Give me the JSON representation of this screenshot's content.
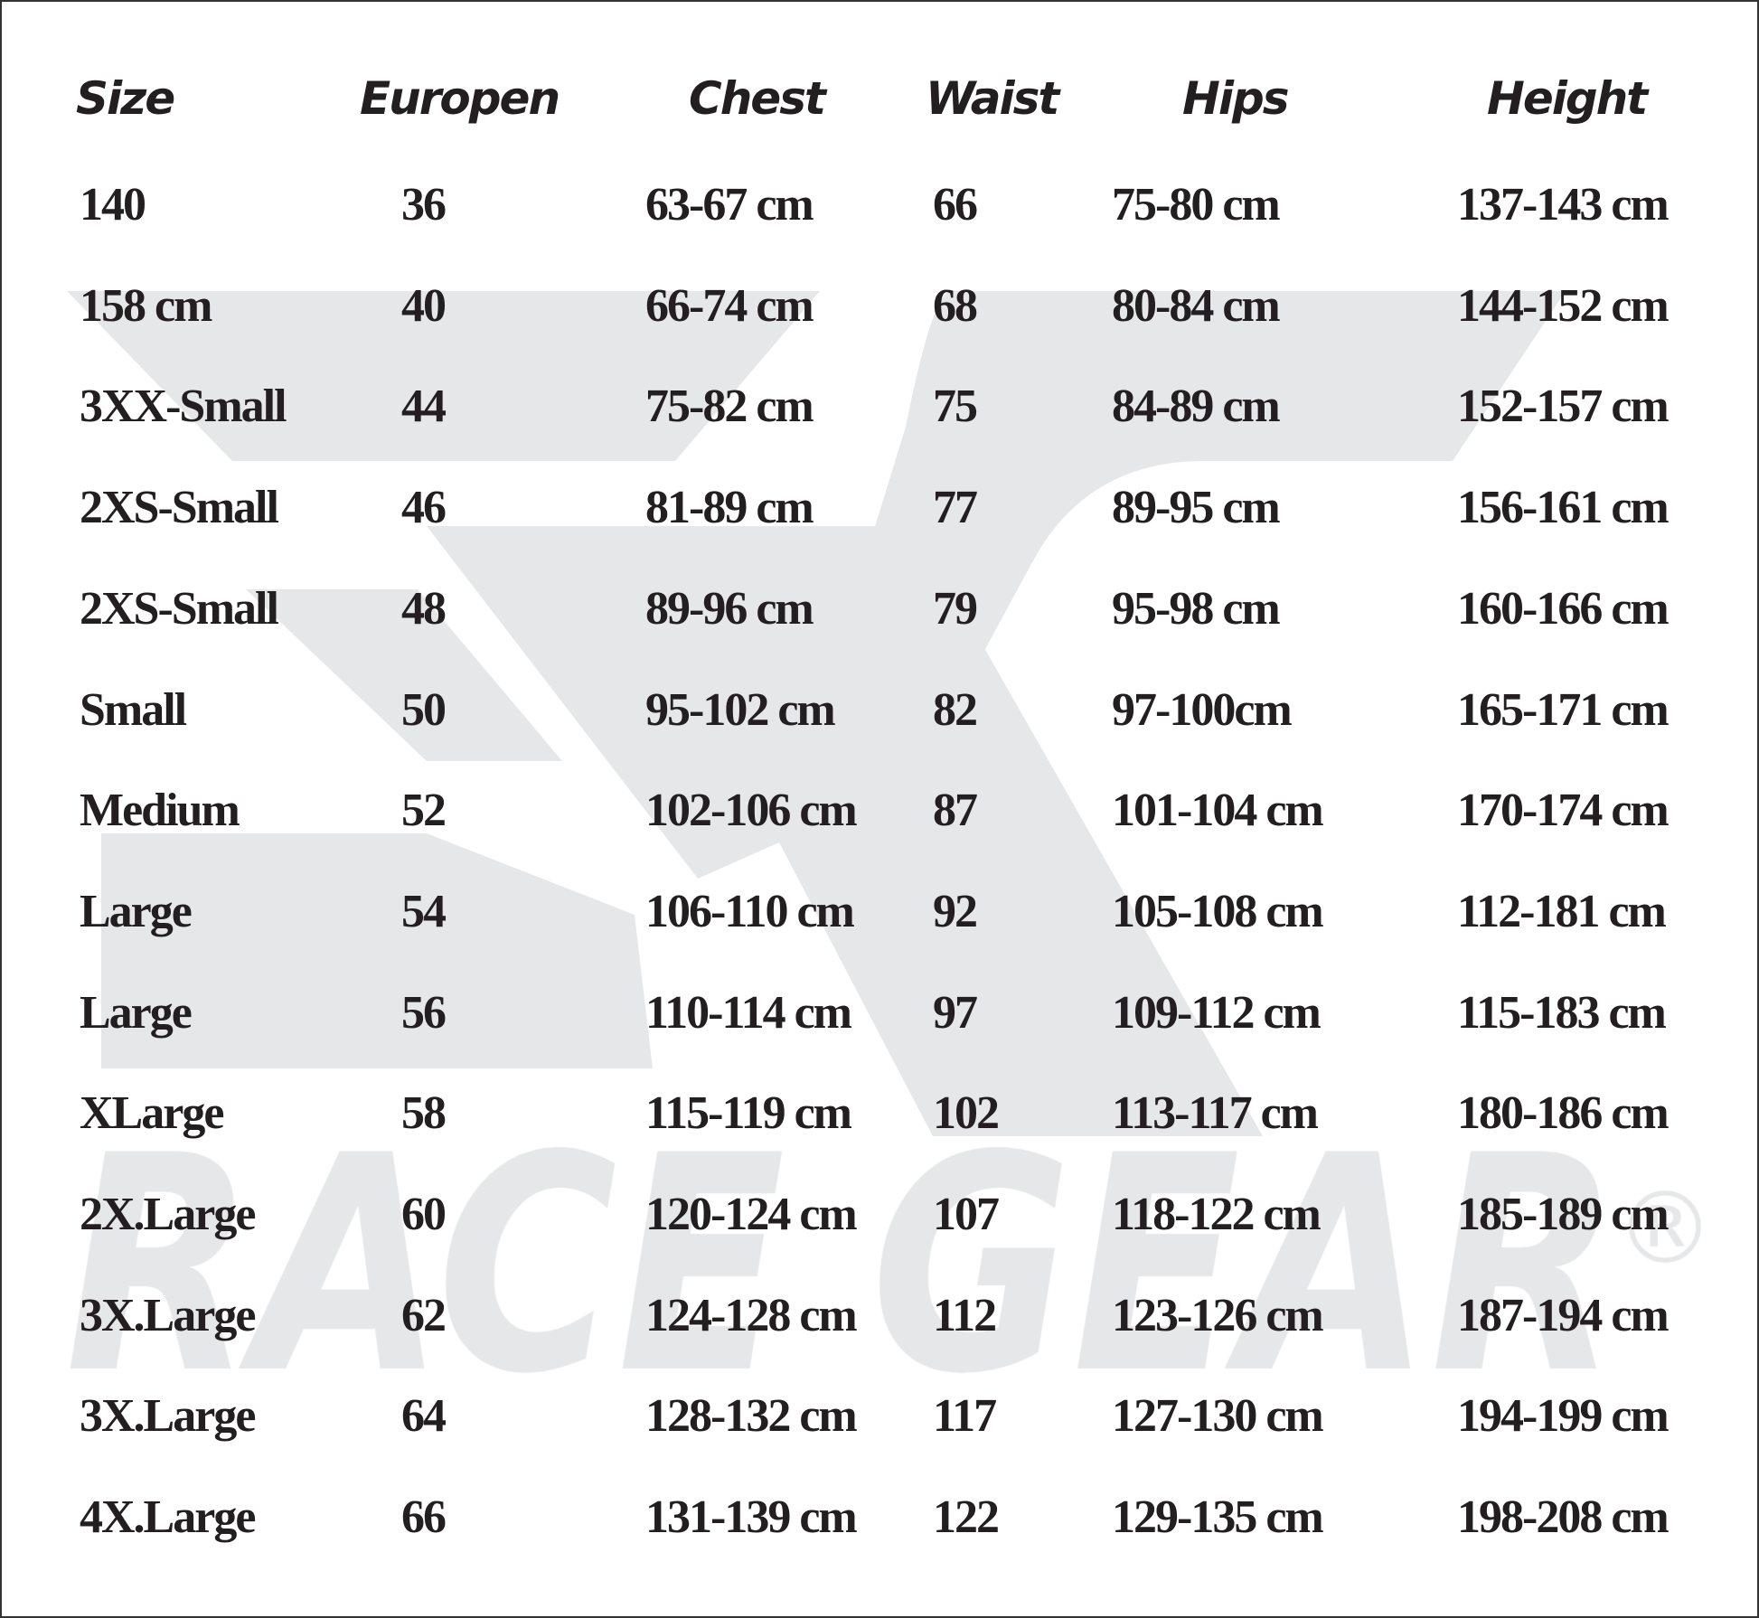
{
  "watermark": {
    "brand": "RACE GEAR",
    "registered": "®",
    "logo": "X-logo",
    "color": "#e6e7e8"
  },
  "headers": [
    "Size",
    "Europen",
    "Chest",
    "Waist",
    "Hips",
    "Height"
  ],
  "rows": [
    [
      "140",
      "36",
      "63-67 cm",
      "66",
      "75-80 cm",
      "137-143 cm"
    ],
    [
      "158 cm",
      "40",
      "66-74 cm",
      "68",
      "80-84 cm",
      "144-152 cm"
    ],
    [
      "3XX-Small",
      "44",
      "75-82 cm",
      "75",
      "84-89 cm",
      "152-157 cm"
    ],
    [
      "2XS-Small",
      "46",
      "81-89 cm",
      "77",
      "89-95 cm",
      "156-161 cm"
    ],
    [
      "2XS-Small",
      "48",
      "89-96 cm",
      "79",
      "95-98 cm",
      "160-166 cm"
    ],
    [
      "Small",
      "50",
      "95-102 cm",
      "82",
      "97-100cm",
      "165-171 cm"
    ],
    [
      "Medium",
      "52",
      "102-106 cm",
      "87",
      "101-104 cm",
      "170-174 cm"
    ],
    [
      "Large",
      "54",
      "106-110 cm",
      "92",
      "105-108 cm",
      "112-181 cm"
    ],
    [
      "Large",
      "56",
      "110-114 cm",
      "97",
      "109-112 cm",
      "115-183 cm"
    ],
    [
      "XLarge",
      "58",
      "115-119 cm",
      "102",
      "113-117 cm",
      "180-186 cm"
    ],
    [
      "2X.Large",
      "60",
      "120-124 cm",
      "107",
      "118-122 cm",
      "185-189 cm"
    ],
    [
      "3X.Large",
      "62",
      "124-128 cm",
      "112",
      "123-126 cm",
      "187-194 cm"
    ],
    [
      "3X.Large",
      "64",
      "128-132 cm",
      "117",
      "127-130 cm",
      "194-199 cm"
    ],
    [
      "4X.Large",
      "66",
      "131-139 cm",
      "122",
      "129-135 cm",
      "198-208 cm"
    ]
  ]
}
